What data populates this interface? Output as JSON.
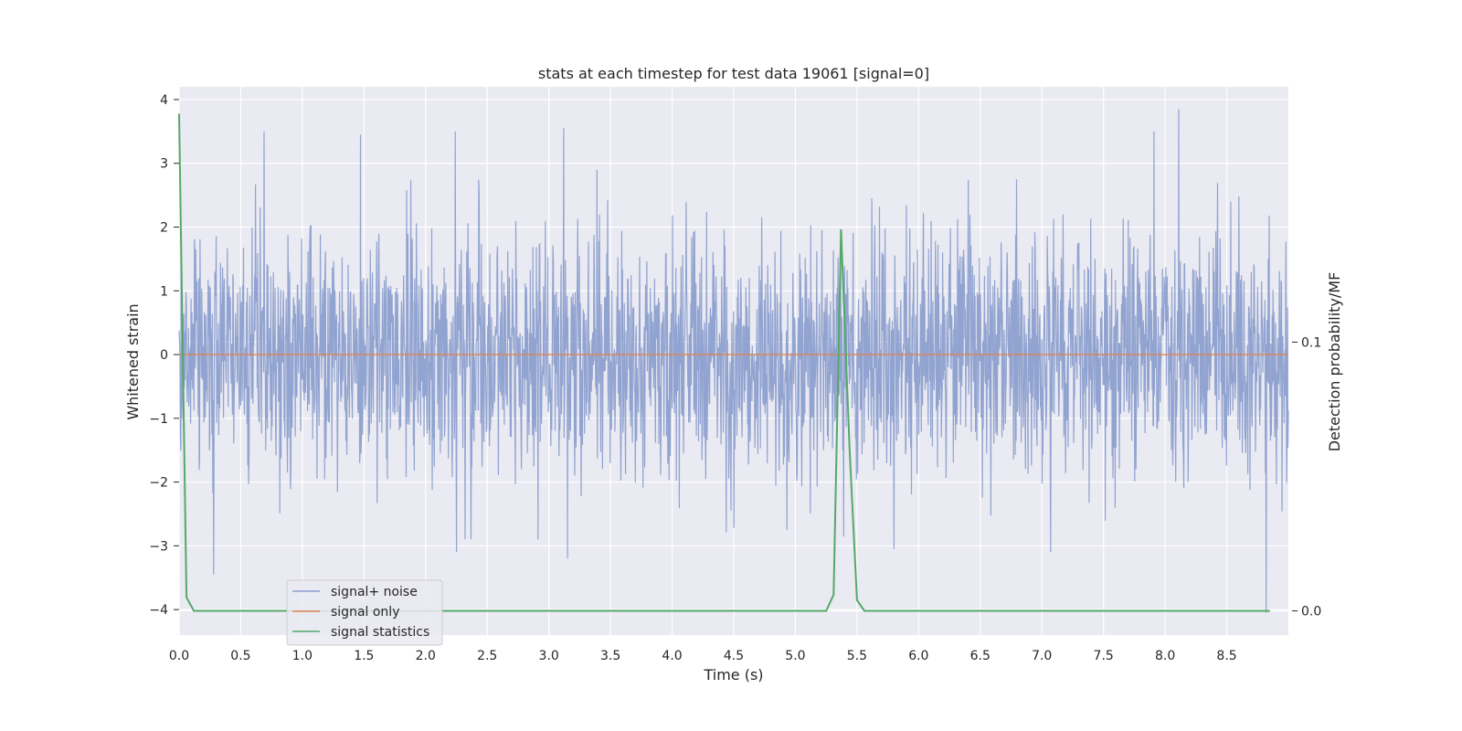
{
  "chart_data": {
    "type": "line",
    "title": "stats at each timestep for test data 19061 [signal=0]",
    "xlabel": "Time (s)",
    "ylabel": "Whitened strain",
    "y2label": "Detection probability/MF",
    "xlim": [
      0,
      9
    ],
    "ylim": [
      -4.4,
      4.2
    ],
    "y2lim": [
      -0.009,
      0.195
    ],
    "xticks": [
      0.0,
      0.5,
      1.0,
      1.5,
      2.0,
      2.5,
      3.0,
      3.5,
      4.0,
      4.5,
      5.0,
      5.5,
      6.0,
      6.5,
      7.0,
      7.5,
      8.0,
      8.5
    ],
    "xtick_labels": [
      "0.0",
      "0.5",
      "1.0",
      "1.5",
      "2.0",
      "2.5",
      "3.0",
      "3.5",
      "4.0",
      "4.5",
      "5.0",
      "5.5",
      "6.0",
      "6.5",
      "7.0",
      "7.5",
      "8.0",
      "8.5"
    ],
    "yticks": [
      4,
      3,
      2,
      1,
      0,
      -1,
      -2,
      -3,
      -4
    ],
    "ytick_labels": [
      "4",
      "3",
      "2",
      "1",
      "0",
      "−1",
      "−2",
      "−3",
      "−4"
    ],
    "y2ticks": [
      0.1,
      0.0
    ],
    "y2tick_labels": [
      "0.1",
      "0.0"
    ],
    "grid": true,
    "legend_position": "lower-left",
    "colors": {
      "noise": "#8c9fce",
      "signal": "#dd8452",
      "stats": "#55a868",
      "plot_bg": "#eaeaf2",
      "grid": "#ffffff"
    },
    "series": [
      {
        "name": "signal+ noise",
        "axis": "left",
        "style": "noise",
        "x_range": [
          0,
          9
        ],
        "amplitude_std": 0.95,
        "extremes": [
          {
            "x": 0.69,
            "y": 3.5
          },
          {
            "x": 1.47,
            "y": 3.45
          },
          {
            "x": 2.24,
            "y": 3.5
          },
          {
            "x": 3.12,
            "y": 3.55
          },
          {
            "x": 7.91,
            "y": 3.5
          },
          {
            "x": 8.11,
            "y": 3.85
          },
          {
            "x": 0.28,
            "y": -3.45
          },
          {
            "x": 3.15,
            "y": -3.2
          },
          {
            "x": 2.25,
            "y": -3.1
          },
          {
            "x": 5.8,
            "y": -3.05
          },
          {
            "x": 7.07,
            "y": -3.1
          },
          {
            "x": 8.82,
            "y": -4.05
          }
        ]
      },
      {
        "name": "signal only",
        "axis": "left",
        "x": [
          0,
          9
        ],
        "y": [
          0,
          0
        ]
      },
      {
        "name": "signal statistics",
        "axis": "right",
        "x": [
          0.0,
          0.06,
          0.12,
          5.25,
          5.31,
          5.37,
          5.44,
          5.5,
          5.56,
          8.85
        ],
        "y": [
          0.185,
          0.005,
          0.0,
          0.0,
          0.006,
          0.142,
          0.06,
          0.004,
          0.0,
          0.0
        ]
      }
    ]
  }
}
